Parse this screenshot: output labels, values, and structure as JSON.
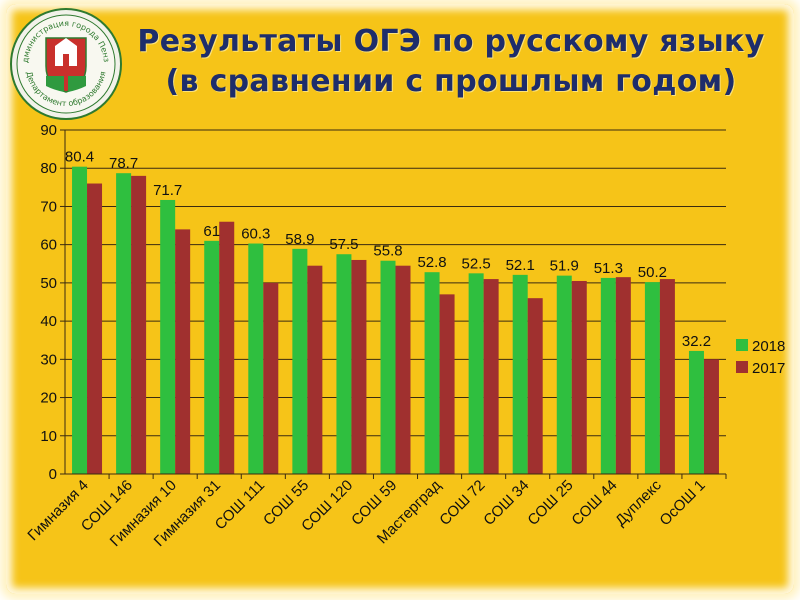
{
  "title": {
    "line1": "Результаты ОГЭ по русскому языку",
    "line2": "(в сравнении с прошлым годом)"
  },
  "emblem": {
    "ring_text_top": "Администрация города Пензы",
    "ring_text_bottom": "Департамент образования"
  },
  "colors": {
    "background": "#f6c418",
    "series_2018": "#2fbf3f",
    "series_2017": "#a0302f",
    "title": "#1e2d6b"
  },
  "chart_data": {
    "type": "bar",
    "categories": [
      "Гимназия 4",
      "СОШ 146",
      "Гимназия 10",
      "Гимназия 31",
      "СОШ 111",
      "СОШ 55",
      "СОШ 120",
      "СОШ 59",
      "Мастерград",
      "СОШ 72",
      "СОШ 34",
      "СОШ 25",
      "СОШ 44",
      "Дуплекс",
      "ОсОШ 1"
    ],
    "series": [
      {
        "name": "2018",
        "values": [
          80.4,
          78.7,
          71.7,
          61,
          60.3,
          58.9,
          57.5,
          55.8,
          52.8,
          52.5,
          52.1,
          51.9,
          51.3,
          50.2,
          32.2
        ]
      },
      {
        "name": "2017",
        "values": [
          76,
          78,
          64,
          66,
          50,
          54.5,
          56,
          54.5,
          47,
          51,
          46,
          50.5,
          51.5,
          51,
          30
        ]
      }
    ],
    "data_labels": [
      "80.4",
      "78.7",
      "71.7",
      "61",
      "60.3",
      "58.9",
      "57.5",
      "55.8",
      "52.8",
      "52.5",
      "52.1",
      "51.9",
      "51.3",
      "50.2",
      "32.2"
    ],
    "yticks": [
      "0",
      "10",
      "20",
      "30",
      "40",
      "50",
      "60",
      "70",
      "80",
      "90"
    ],
    "ylim": [
      0,
      90
    ],
    "grid": true,
    "legend_position": "right"
  }
}
